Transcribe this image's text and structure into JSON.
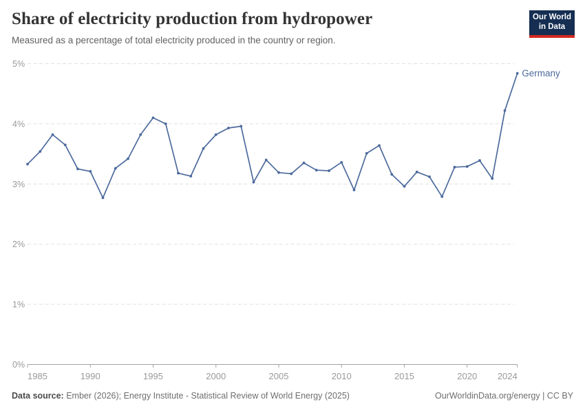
{
  "header": {
    "title": "Share of electricity production from hydropower",
    "subtitle": "Measured as a percentage of total electricity produced in the country or region.",
    "logo_line1": "Our World",
    "logo_line2": "in Data",
    "logo_bg_color": "#152E52",
    "logo_bar_color": "#D42B21"
  },
  "chart_data": {
    "type": "line",
    "title": "Share of electricity production from hydropower",
    "subtitle": "Measured as a percentage of total electricity produced in the country or region.",
    "xlabel": "",
    "ylabel": "",
    "ylim": [
      0,
      5
    ],
    "grid": "horizontal-dashed",
    "legend_position": "end-of-line",
    "x": [
      1985,
      1986,
      1987,
      1988,
      1989,
      1990,
      1991,
      1992,
      1993,
      1994,
      1995,
      1996,
      1997,
      1998,
      1999,
      2000,
      2001,
      2002,
      2003,
      2004,
      2005,
      2006,
      2007,
      2008,
      2009,
      2010,
      2011,
      2012,
      2013,
      2014,
      2015,
      2016,
      2017,
      2018,
      2019,
      2020,
      2021,
      2022,
      2023,
      2024
    ],
    "series": [
      {
        "name": "Germany",
        "color": "#4C6A9C",
        "values": [
          3.33,
          3.54,
          3.82,
          3.65,
          3.25,
          3.21,
          2.77,
          3.26,
          3.42,
          3.82,
          4.1,
          4.0,
          3.18,
          3.13,
          3.59,
          3.82,
          3.93,
          3.96,
          3.03,
          3.4,
          3.19,
          3.17,
          3.35,
          3.23,
          3.22,
          3.36,
          2.9,
          3.51,
          3.64,
          3.16,
          2.96,
          3.2,
          3.12,
          2.79,
          3.28,
          3.29,
          3.39,
          3.09,
          4.22,
          4.84
        ]
      }
    ],
    "yticks": [
      {
        "value": 0,
        "label": "0%"
      },
      {
        "value": 1,
        "label": "1%"
      },
      {
        "value": 2,
        "label": "2%"
      },
      {
        "value": 3,
        "label": "3%"
      },
      {
        "value": 4,
        "label": "4%"
      },
      {
        "value": 5,
        "label": "5%"
      }
    ],
    "xticks": [
      {
        "value": 1985,
        "label": "1985"
      },
      {
        "value": 1990,
        "label": "1990"
      },
      {
        "value": 1995,
        "label": "1995"
      },
      {
        "value": 2000,
        "label": "2000"
      },
      {
        "value": 2005,
        "label": "2005"
      },
      {
        "value": 2010,
        "label": "2010"
      },
      {
        "value": 2015,
        "label": "2015"
      },
      {
        "value": 2020,
        "label": "2020"
      },
      {
        "value": 2024,
        "label": "2024"
      }
    ],
    "colors": {
      "line": "#4C6A9C",
      "gridline": "#e0e0e0",
      "axis": "#a3a3a3",
      "tick_label": "#999999"
    }
  },
  "footer": {
    "source_label": "Data source:",
    "source_text": "Ember (2026); Energy Institute - Statistical Review of World Energy (2025)",
    "credit": "OurWorldinData.org/energy | CC BY"
  }
}
